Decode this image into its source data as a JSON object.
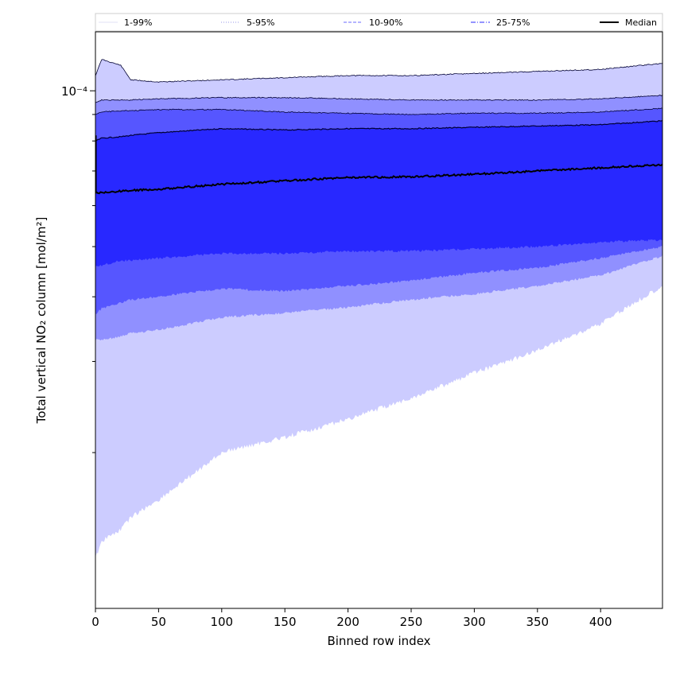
{
  "chart_data": {
    "type": "area",
    "xlabel": "Binned row index",
    "ylabel": "Total vertical NO₂ column [mol/m²]",
    "xlim": [
      0,
      449
    ],
    "ylim": [
      1e-05,
      0.00013
    ],
    "yscale": "log",
    "x_ticks": [
      0,
      50,
      100,
      150,
      200,
      250,
      300,
      350,
      400
    ],
    "y_tick_label": "10⁻⁴",
    "grid": false,
    "legend": {
      "position": "top",
      "entries": [
        {
          "label": "1-99%",
          "color": "#e8e8f8",
          "style": "solid"
        },
        {
          "label": "5-95%",
          "color": "#aaaaee",
          "style": "dotted"
        },
        {
          "label": "10-90%",
          "color": "#8888ff",
          "style": "dashed"
        },
        {
          "label": "25-75%",
          "color": "#5555ff",
          "style": "dashdot"
        },
        {
          "label": "Median",
          "color": "#000000",
          "style": "solid"
        }
      ]
    },
    "colors": {
      "band_1_99": "#ccccff",
      "band_5_95": "#9090ff",
      "band_10_90": "#5656ff",
      "band_25_75": "#2828ff",
      "median": "#000000"
    },
    "x": [
      0,
      5,
      20,
      28,
      50,
      100,
      150,
      200,
      250,
      300,
      350,
      400,
      449
    ],
    "series": [
      {
        "name": "1-99%",
        "lower": [
          1.25e-05,
          1.35e-05,
          1.42e-05,
          1.5e-05,
          1.62e-05,
          2e-05,
          2.14e-05,
          2.32e-05,
          2.55e-05,
          2.85e-05,
          3.15e-05,
          3.55e-05,
          4.2e-05
        ],
        "upper": [
          0.000107,
          0.000115,
          0.000112,
          0.000105,
          0.000104,
          0.000105,
          0.000106,
          0.000107,
          0.000107,
          0.000108,
          0.000109,
          0.00011,
          0.000113
        ]
      },
      {
        "name": "5-95%",
        "lower": [
          3.3e-05,
          3.3e-05,
          3.35e-05,
          3.4e-05,
          3.45e-05,
          3.65e-05,
          3.72e-05,
          3.82e-05,
          3.95e-05,
          4.05e-05,
          4.2e-05,
          4.4e-05,
          4.8e-05
        ],
        "upper": [
          9.5e-05,
          9.6e-05,
          9.6e-05,
          9.6e-05,
          9.65e-05,
          9.7e-05,
          9.7e-05,
          9.65e-05,
          9.6e-05,
          9.6e-05,
          9.6e-05,
          9.65e-05,
          9.8e-05
        ]
      },
      {
        "name": "10-90%",
        "lower": [
          3.7e-05,
          3.8e-05,
          3.9e-05,
          3.95e-05,
          4e-05,
          4.15e-05,
          4.1e-05,
          4.2e-05,
          4.3e-05,
          4.45e-05,
          4.55e-05,
          4.75e-05,
          5e-05
        ],
        "upper": [
          9e-05,
          9.1e-05,
          9.15e-05,
          9.15e-05,
          9.2e-05,
          9.2e-05,
          9.1e-05,
          9.05e-05,
          9e-05,
          9.05e-05,
          9.05e-05,
          9.1e-05,
          9.25e-05
        ]
      },
      {
        "name": "25-75%",
        "lower": [
          4.6e-05,
          4.6e-05,
          4.7e-05,
          4.7e-05,
          4.75e-05,
          4.85e-05,
          4.85e-05,
          4.9e-05,
          4.9e-05,
          4.95e-05,
          5e-05,
          5.1e-05,
          5.15e-05
        ],
        "upper": [
          8e-05,
          8.1e-05,
          8.15e-05,
          8.2e-05,
          8.3e-05,
          8.45e-05,
          8.4e-05,
          8.45e-05,
          8.45e-05,
          8.5e-05,
          8.55e-05,
          8.6e-05,
          8.75e-05
        ]
      },
      {
        "name": "Median",
        "values": [
          6.35e-05,
          6.35e-05,
          6.4e-05,
          6.42e-05,
          6.45e-05,
          6.6e-05,
          6.7e-05,
          6.8e-05,
          6.82e-05,
          6.9e-05,
          7e-05,
          7.1e-05,
          7.2e-05
        ]
      }
    ]
  }
}
